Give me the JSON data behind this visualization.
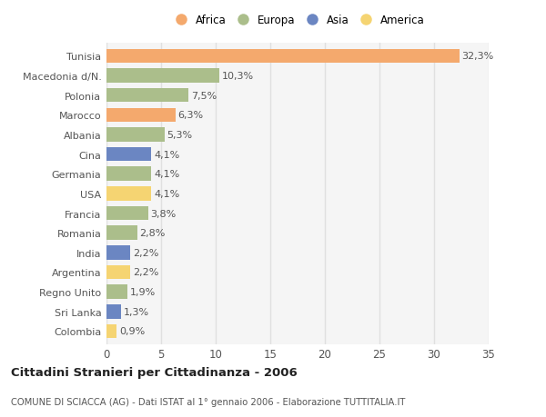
{
  "countries": [
    "Tunisia",
    "Macedonia d/N.",
    "Polonia",
    "Marocco",
    "Albania",
    "Cina",
    "Germania",
    "USA",
    "Francia",
    "Romania",
    "India",
    "Argentina",
    "Regno Unito",
    "Sri Lanka",
    "Colombia"
  ],
  "values": [
    32.3,
    10.3,
    7.5,
    6.3,
    5.3,
    4.1,
    4.1,
    4.1,
    3.8,
    2.8,
    2.2,
    2.2,
    1.9,
    1.3,
    0.9
  ],
  "labels": [
    "32,3%",
    "10,3%",
    "7,5%",
    "6,3%",
    "5,3%",
    "4,1%",
    "4,1%",
    "4,1%",
    "3,8%",
    "2,8%",
    "2,2%",
    "2,2%",
    "1,9%",
    "1,3%",
    "0,9%"
  ],
  "continents": [
    "Africa",
    "Europa",
    "Europa",
    "Africa",
    "Europa",
    "Asia",
    "Europa",
    "America",
    "Europa",
    "Europa",
    "Asia",
    "America",
    "Europa",
    "Asia",
    "America"
  ],
  "continent_colors": {
    "Africa": "#F4A96D",
    "Europa": "#ABBE8B",
    "Asia": "#6B86C2",
    "America": "#F5D472"
  },
  "legend_order": [
    "Africa",
    "Europa",
    "Asia",
    "America"
  ],
  "title": "Cittadini Stranieri per Cittadinanza - 2006",
  "subtitle": "COMUNE DI SCIACCA (AG) - Dati ISTAT al 1° gennaio 2006 - Elaborazione TUTTITALIA.IT",
  "xlim": [
    0,
    35
  ],
  "xticks": [
    0,
    5,
    10,
    15,
    20,
    25,
    30,
    35
  ],
  "background_color": "#ffffff",
  "plot_bg_color": "#f5f5f5",
  "grid_color": "#e0e0e0",
  "bar_height": 0.72,
  "label_fontsize": 8.0,
  "ytick_fontsize": 8.0,
  "xtick_fontsize": 8.5
}
